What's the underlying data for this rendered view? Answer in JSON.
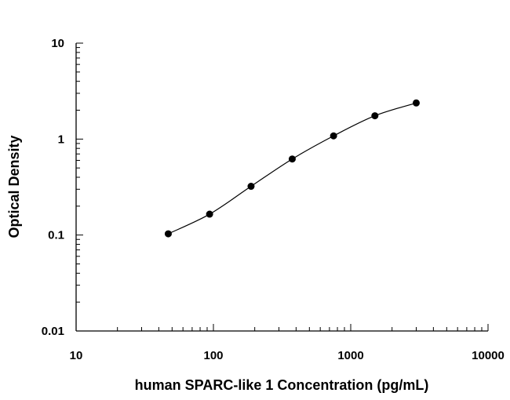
{
  "chart_data": {
    "type": "scatter",
    "title": "",
    "xlabel": "human SPARC-like 1 Concentration (pg/mL)",
    "ylabel": "Optical Density",
    "x_scale": "log",
    "y_scale": "log",
    "xlim": [
      10,
      10000
    ],
    "ylim": [
      0.01,
      10
    ],
    "x_tick_labels": [
      "10",
      "100",
      "1000",
      "10000"
    ],
    "y_tick_labels": [
      "0.01",
      "0.1",
      "1",
      "10"
    ],
    "grid": false,
    "legend": "none",
    "fit_curve": true,
    "series": [
      {
        "x": [
          46.9,
          93.8,
          188,
          375,
          750,
          1500,
          3000
        ],
        "y": [
          0.103,
          0.165,
          0.322,
          0.62,
          1.08,
          1.75,
          2.38
        ]
      }
    ],
    "colors": {
      "points": "#000000",
      "curve": "#000000",
      "axes": "#000000"
    }
  }
}
